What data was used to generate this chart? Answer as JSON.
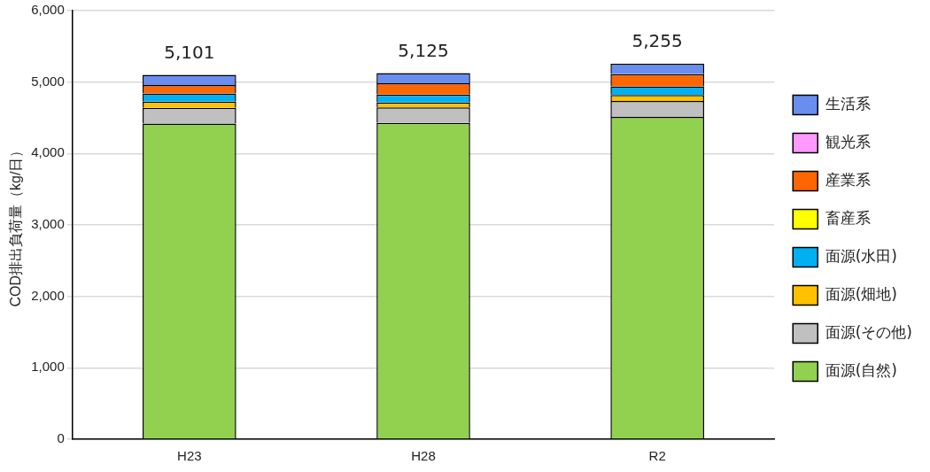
{
  "chart_data": {
    "type": "bar",
    "stacked": true,
    "ylabel": "COD排出負荷量（kg/日）",
    "categories": [
      "H23",
      "H28",
      "R2"
    ],
    "series": [
      {
        "name": "面源(自然)",
        "color": "#92d050",
        "values": [
          4420,
          4430,
          4513
        ]
      },
      {
        "name": "面源(その他)",
        "color": "#c0c0c0",
        "values": [
          220,
          215,
          222
        ]
      },
      {
        "name": "面源(畑地)",
        "color": "#ffc000",
        "values": [
          85,
          70,
          85
        ]
      },
      {
        "name": "面源(水田)",
        "color": "#00b0f0",
        "values": [
          115,
          110,
          120
        ]
      },
      {
        "name": "畜産系",
        "color": "#ffff00",
        "values": [
          null,
          null,
          null
        ]
      },
      {
        "name": "産業系",
        "color": "#ff6600",
        "values": [
          120,
          160,
          170
        ]
      },
      {
        "name": "観光系",
        "color": "#ff99ff",
        "values": [
          null,
          null,
          null
        ]
      },
      {
        "name": "生活系",
        "color": "#6a8ef0",
        "values": [
          141,
          140,
          145
        ]
      }
    ],
    "totals": [
      "5,101",
      "5,125",
      "5,255"
    ],
    "ylim": [
      0,
      6000
    ],
    "yticks": [
      {
        "value": 0,
        "label": "0"
      },
      {
        "value": 1000,
        "label": "1,000"
      },
      {
        "value": 2000,
        "label": "2,000"
      },
      {
        "value": 3000,
        "label": "3,000"
      },
      {
        "value": 4000,
        "label": "4,000"
      },
      {
        "value": 5000,
        "label": "5,000"
      },
      {
        "value": 6000,
        "label": "6,000"
      }
    ],
    "grid": "y",
    "legend": "right"
  }
}
